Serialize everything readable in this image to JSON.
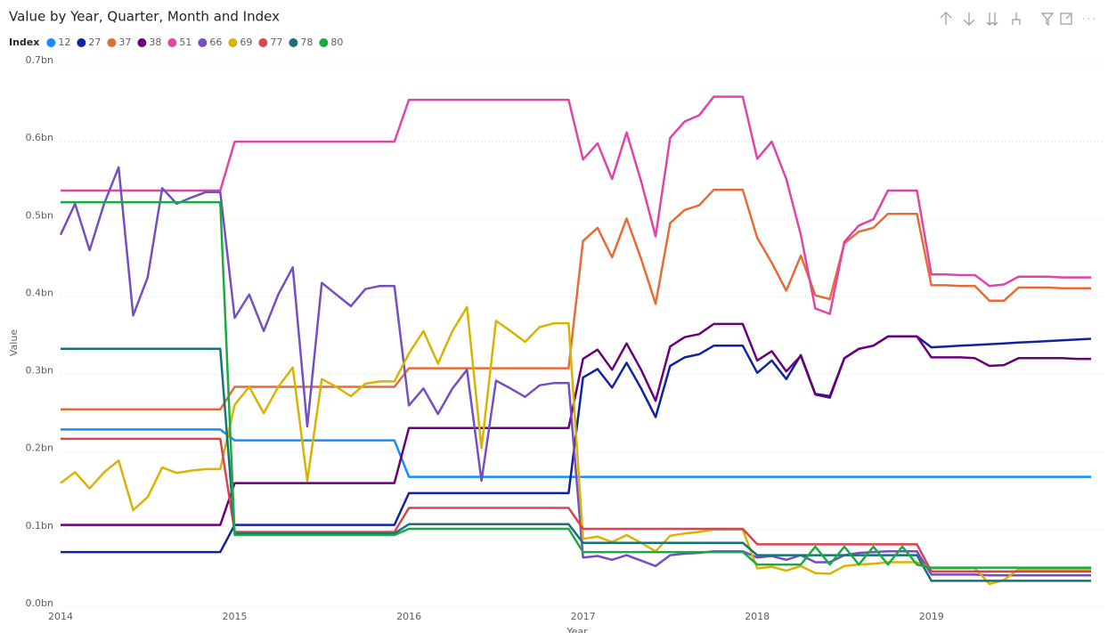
{
  "chart_data": {
    "type": "line",
    "title": "Value by Year, Quarter, Month and Index",
    "legend_title": "Index",
    "x_label": "Year",
    "y_label": "Value",
    "x": [
      2014,
      2014.0833,
      2014.1667,
      2014.25,
      2014.3333,
      2014.4167,
      2014.5,
      2014.5833,
      2014.6667,
      2014.75,
      2014.8333,
      2014.9167,
      2015,
      2015.0833,
      2015.1667,
      2015.25,
      2015.3333,
      2015.4167,
      2015.5,
      2015.5833,
      2015.6667,
      2015.75,
      2015.8333,
      2015.9167,
      2016,
      2016.0833,
      2016.1667,
      2016.25,
      2016.3333,
      2016.4167,
      2016.5,
      2016.5833,
      2016.6667,
      2016.75,
      2016.8333,
      2016.9167,
      2017,
      2017.0833,
      2017.1667,
      2017.25,
      2017.3333,
      2017.4167,
      2017.5,
      2017.5833,
      2017.6667,
      2017.75,
      2017.8333,
      2017.9167,
      2018,
      2018.0833,
      2018.1667,
      2018.25,
      2018.3333,
      2018.4167,
      2018.5,
      2018.5833,
      2018.6667,
      2018.75,
      2018.8333,
      2018.9167,
      2019,
      2019.0833,
      2019.1667,
      2019.25,
      2019.3333,
      2019.4167,
      2019.5,
      2019.5833,
      2019.6667,
      2019.75,
      2019.8333,
      2019.9167
    ],
    "xlim": [
      2014,
      2019.9167
    ],
    "xticks": [
      2014,
      2015,
      2016,
      2017,
      2018,
      2019
    ],
    "ylim": [
      0,
      0.7
    ],
    "yticks": [
      {
        "value": 0,
        "label": "0.0bn"
      },
      {
        "value": 0.1,
        "label": "0.1bn"
      },
      {
        "value": 0.2,
        "label": "0.2bn"
      },
      {
        "value": 0.3,
        "label": "0.3bn"
      },
      {
        "value": 0.4,
        "label": "0.4bn"
      },
      {
        "value": 0.5,
        "label": "0.5bn"
      },
      {
        "value": 0.6,
        "label": "0.6bn"
      },
      {
        "value": 0.7,
        "label": "0.7bn"
      }
    ],
    "grid": true,
    "series": [
      {
        "name": "12",
        "color": "#118DFF",
        "values": [
          0.229,
          0.229,
          0.229,
          0.229,
          0.229,
          0.229,
          0.229,
          0.229,
          0.229,
          0.229,
          0.229,
          0.229,
          0.215,
          0.215,
          0.215,
          0.215,
          0.215,
          0.215,
          0.215,
          0.215,
          0.215,
          0.215,
          0.215,
          0.215,
          0.168,
          0.168,
          0.168,
          0.168,
          0.168,
          0.168,
          0.168,
          0.168,
          0.168,
          0.168,
          0.168,
          0.168,
          0.168,
          0.168,
          0.168,
          0.168,
          0.168,
          0.168,
          0.168,
          0.168,
          0.168,
          0.168,
          0.168,
          0.168,
          0.168,
          0.168,
          0.168,
          0.168,
          0.168,
          0.168,
          0.168,
          0.168,
          0.168,
          0.168,
          0.168,
          0.168,
          0.168,
          0.168,
          0.168,
          0.168,
          0.168,
          0.168,
          0.168,
          0.168,
          0.168,
          0.168,
          0.168,
          0.168
        ]
      },
      {
        "name": "27",
        "color": "#12239E",
        "values": [
          0.071,
          0.071,
          0.071,
          0.071,
          0.071,
          0.071,
          0.071,
          0.071,
          0.071,
          0.071,
          0.071,
          0.071,
          0.106,
          0.106,
          0.106,
          0.106,
          0.106,
          0.106,
          0.106,
          0.106,
          0.106,
          0.106,
          0.106,
          0.106,
          0.147,
          0.147,
          0.147,
          0.147,
          0.147,
          0.147,
          0.147,
          0.147,
          0.147,
          0.147,
          0.147,
          0.147,
          0.296,
          0.307,
          0.283,
          0.315,
          0.282,
          0.245,
          0.311,
          0.322,
          0.326,
          0.337,
          0.337,
          0.337,
          0.302,
          0.318,
          0.294,
          0.325,
          0.275,
          0.272,
          0.321,
          0.333,
          0.337,
          0.349,
          0.349,
          0.349,
          0.335,
          0.336,
          0.337,
          0.338,
          0.339,
          0.34,
          0.341,
          0.342,
          0.343,
          0.344,
          0.345,
          0.346
        ]
      },
      {
        "name": "37",
        "color": "#E66C37",
        "values": [
          0.255,
          0.255,
          0.255,
          0.255,
          0.255,
          0.255,
          0.255,
          0.255,
          0.255,
          0.255,
          0.255,
          0.255,
          0.284,
          0.284,
          0.284,
          0.284,
          0.284,
          0.284,
          0.284,
          0.284,
          0.284,
          0.284,
          0.284,
          0.284,
          0.308,
          0.308,
          0.308,
          0.308,
          0.308,
          0.308,
          0.308,
          0.308,
          0.308,
          0.308,
          0.308,
          0.308,
          0.472,
          0.489,
          0.451,
          0.501,
          0.449,
          0.391,
          0.495,
          0.512,
          0.518,
          0.538,
          0.538,
          0.538,
          0.476,
          0.444,
          0.408,
          0.453,
          0.402,
          0.397,
          0.469,
          0.484,
          0.489,
          0.507,
          0.507,
          0.507,
          0.415,
          0.415,
          0.414,
          0.414,
          0.395,
          0.395,
          0.412,
          0.412,
          0.412,
          0.411,
          0.411,
          0.411
        ]
      },
      {
        "name": "38",
        "color": "#6B007B",
        "values": [
          0.106,
          0.106,
          0.106,
          0.106,
          0.106,
          0.106,
          0.106,
          0.106,
          0.106,
          0.106,
          0.106,
          0.106,
          0.16,
          0.16,
          0.16,
          0.16,
          0.16,
          0.16,
          0.16,
          0.16,
          0.16,
          0.16,
          0.16,
          0.16,
          0.231,
          0.231,
          0.231,
          0.231,
          0.231,
          0.231,
          0.231,
          0.231,
          0.231,
          0.231,
          0.231,
          0.231,
          0.32,
          0.332,
          0.306,
          0.34,
          0.306,
          0.266,
          0.336,
          0.348,
          0.352,
          0.365,
          0.365,
          0.365,
          0.318,
          0.33,
          0.304,
          0.324,
          0.274,
          0.27,
          0.321,
          0.333,
          0.337,
          0.349,
          0.349,
          0.349,
          0.322,
          0.322,
          0.322,
          0.321,
          0.311,
          0.312,
          0.321,
          0.321,
          0.321,
          0.321,
          0.32,
          0.32
        ]
      },
      {
        "name": "51",
        "color": "#E044A7",
        "values": [
          0.537,
          0.537,
          0.537,
          0.537,
          0.537,
          0.537,
          0.537,
          0.537,
          0.537,
          0.537,
          0.537,
          0.537,
          0.6,
          0.6,
          0.6,
          0.6,
          0.6,
          0.6,
          0.6,
          0.6,
          0.6,
          0.6,
          0.6,
          0.6,
          0.654,
          0.654,
          0.654,
          0.654,
          0.654,
          0.654,
          0.654,
          0.654,
          0.654,
          0.654,
          0.654,
          0.654,
          0.577,
          0.598,
          0.552,
          0.612,
          0.549,
          0.478,
          0.605,
          0.626,
          0.634,
          0.658,
          0.658,
          0.658,
          0.578,
          0.6,
          0.552,
          0.48,
          0.385,
          0.378,
          0.471,
          0.492,
          0.5,
          0.537,
          0.537,
          0.537,
          0.429,
          0.429,
          0.428,
          0.428,
          0.414,
          0.416,
          0.426,
          0.426,
          0.426,
          0.425,
          0.425,
          0.425
        ]
      },
      {
        "name": "66",
        "color": "#744EC2",
        "values": [
          0.48,
          0.52,
          0.46,
          0.52,
          0.567,
          0.376,
          0.425,
          0.54,
          0.52,
          0.528,
          0.535,
          0.535,
          0.373,
          0.403,
          0.356,
          0.403,
          0.438,
          0.233,
          0.418,
          0.403,
          0.388,
          0.41,
          0.414,
          0.414,
          0.26,
          0.282,
          0.249,
          0.282,
          0.306,
          0.163,
          0.292,
          0.282,
          0.271,
          0.286,
          0.289,
          0.289,
          0.064,
          0.066,
          0.061,
          0.067,
          0.06,
          0.053,
          0.067,
          0.069,
          0.07,
          0.072,
          0.072,
          0.072,
          0.064,
          0.066,
          0.061,
          0.067,
          0.058,
          0.058,
          0.067,
          0.07,
          0.071,
          0.072,
          0.072,
          0.072,
          0.042,
          0.042,
          0.042,
          0.042,
          0.041,
          0.041,
          0.041,
          0.041,
          0.041,
          0.041,
          0.041,
          0.041
        ]
      },
      {
        "name": "69",
        "color": "#D9B300",
        "values": [
          0.16,
          0.174,
          0.153,
          0.174,
          0.189,
          0.125,
          0.142,
          0.18,
          0.173,
          0.176,
          0.178,
          0.178,
          0.261,
          0.284,
          0.25,
          0.284,
          0.309,
          0.163,
          0.294,
          0.284,
          0.272,
          0.288,
          0.291,
          0.291,
          0.327,
          0.356,
          0.314,
          0.356,
          0.387,
          0.205,
          0.369,
          0.356,
          0.342,
          0.361,
          0.366,
          0.366,
          0.088,
          0.091,
          0.084,
          0.093,
          0.083,
          0.072,
          0.092,
          0.095,
          0.097,
          0.1,
          0.1,
          0.1,
          0.05,
          0.052,
          0.047,
          0.053,
          0.044,
          0.043,
          0.053,
          0.055,
          0.056,
          0.058,
          0.058,
          0.058,
          0.05,
          0.05,
          0.05,
          0.05,
          0.03,
          0.035,
          0.049,
          0.049,
          0.049,
          0.049,
          0.049,
          0.049
        ]
      },
      {
        "name": "77",
        "color": "#D64550",
        "values": [
          0.217,
          0.217,
          0.217,
          0.217,
          0.217,
          0.217,
          0.217,
          0.217,
          0.217,
          0.217,
          0.217,
          0.217,
          0.097,
          0.097,
          0.097,
          0.097,
          0.097,
          0.097,
          0.097,
          0.097,
          0.097,
          0.097,
          0.097,
          0.097,
          0.128,
          0.128,
          0.128,
          0.128,
          0.128,
          0.128,
          0.128,
          0.128,
          0.128,
          0.128,
          0.128,
          0.128,
          0.101,
          0.101,
          0.101,
          0.101,
          0.101,
          0.101,
          0.101,
          0.101,
          0.101,
          0.101,
          0.101,
          0.101,
          0.081,
          0.081,
          0.081,
          0.081,
          0.081,
          0.081,
          0.081,
          0.081,
          0.081,
          0.081,
          0.081,
          0.081,
          0.046,
          0.046,
          0.046,
          0.046,
          0.046,
          0.046,
          0.046,
          0.046,
          0.046,
          0.046,
          0.046,
          0.046
        ]
      },
      {
        "name": "78",
        "color": "#197278",
        "values": [
          0.333,
          0.333,
          0.333,
          0.333,
          0.333,
          0.333,
          0.333,
          0.333,
          0.333,
          0.333,
          0.333,
          0.333,
          0.095,
          0.095,
          0.095,
          0.095,
          0.095,
          0.095,
          0.095,
          0.095,
          0.095,
          0.095,
          0.095,
          0.095,
          0.107,
          0.107,
          0.107,
          0.107,
          0.107,
          0.107,
          0.107,
          0.107,
          0.107,
          0.107,
          0.107,
          0.107,
          0.083,
          0.083,
          0.083,
          0.083,
          0.083,
          0.083,
          0.083,
          0.083,
          0.083,
          0.083,
          0.083,
          0.083,
          0.067,
          0.067,
          0.067,
          0.067,
          0.067,
          0.067,
          0.067,
          0.067,
          0.067,
          0.067,
          0.067,
          0.067,
          0.034,
          0.034,
          0.034,
          0.034,
          0.034,
          0.034,
          0.034,
          0.034,
          0.034,
          0.034,
          0.034,
          0.034
        ]
      },
      {
        "name": "80",
        "color": "#1AAB40",
        "values": [
          0.522,
          0.522,
          0.522,
          0.522,
          0.522,
          0.522,
          0.522,
          0.522,
          0.522,
          0.522,
          0.522,
          0.522,
          0.093,
          0.093,
          0.093,
          0.093,
          0.093,
          0.093,
          0.093,
          0.093,
          0.093,
          0.093,
          0.093,
          0.093,
          0.101,
          0.101,
          0.101,
          0.101,
          0.101,
          0.101,
          0.101,
          0.101,
          0.101,
          0.101,
          0.101,
          0.101,
          0.071,
          0.071,
          0.071,
          0.071,
          0.071,
          0.071,
          0.071,
          0.071,
          0.071,
          0.071,
          0.071,
          0.071,
          0.055,
          0.055,
          0.055,
          0.055,
          0.078,
          0.055,
          0.078,
          0.055,
          0.078,
          0.055,
          0.078,
          0.055,
          0.051,
          0.051,
          0.051,
          0.051,
          0.051,
          0.051,
          0.051,
          0.051,
          0.051,
          0.051,
          0.051,
          0.051
        ]
      }
    ]
  }
}
